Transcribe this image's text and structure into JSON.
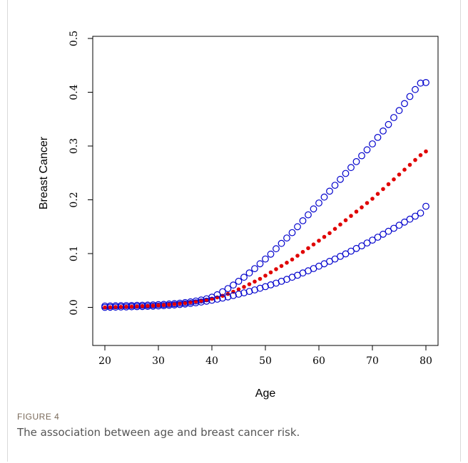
{
  "figure": {
    "label": "FIGURE 4",
    "caption": "The association between age and breast cancer risk."
  },
  "colors": {
    "estimate": "#e00000",
    "bounds": "#0000cc",
    "axis": "#000000"
  },
  "chart_data": {
    "type": "scatter",
    "title": "",
    "xlabel": "Age",
    "ylabel": "Breast Cancer",
    "xlim": [
      20,
      80
    ],
    "ylim": [
      -0.07,
      0.5
    ],
    "xticks": [
      20,
      30,
      40,
      50,
      60,
      70,
      80
    ],
    "yticks": [
      0.0,
      0.1,
      0.2,
      0.3,
      0.4,
      0.5
    ],
    "ytick_labels": [
      "0.0",
      "0.1",
      "0.2",
      "0.3",
      "0.4",
      "0.5"
    ],
    "grid": false,
    "x": [
      20,
      21,
      22,
      23,
      24,
      25,
      26,
      27,
      28,
      29,
      30,
      31,
      32,
      33,
      34,
      35,
      36,
      37,
      38,
      39,
      40,
      41,
      42,
      43,
      44,
      45,
      46,
      47,
      48,
      49,
      50,
      51,
      52,
      53,
      54,
      55,
      56,
      57,
      58,
      59,
      60,
      61,
      62,
      63,
      64,
      65,
      66,
      67,
      68,
      69,
      70,
      71,
      72,
      73,
      74,
      75,
      76,
      77,
      78,
      79,
      80
    ],
    "series": [
      {
        "marker": "open-circle",
        "values": [
          0.0025,
          0.0027,
          0.0029,
          0.0031,
          0.0033,
          0.0035,
          0.0037,
          0.004,
          0.0043,
          0.0047,
          0.0051,
          0.0056,
          0.0062,
          0.0069,
          0.0078,
          0.0089,
          0.0102,
          0.0118,
          0.0137,
          0.0159,
          0.019,
          0.0235,
          0.029,
          0.035,
          0.0415,
          0.0485,
          0.056,
          0.064,
          0.072,
          0.081,
          0.09,
          0.099,
          0.109,
          0.119,
          0.129,
          0.139,
          0.15,
          0.161,
          0.172,
          0.183,
          0.194,
          0.205,
          0.216,
          0.227,
          0.238,
          0.249,
          0.26,
          0.271,
          0.282,
          0.293,
          0.304,
          0.316,
          0.328,
          0.34,
          0.353,
          0.366,
          0.379,
          0.392,
          0.405,
          0.417,
          0.418
        ]
      },
      {
        "marker": "filled-circle",
        "values": [
          0.0,
          0.0003,
          0.0006,
          0.0009,
          0.0012,
          0.0015,
          0.0019,
          0.0023,
          0.0027,
          0.0032,
          0.0038,
          0.0044,
          0.0052,
          0.006,
          0.007,
          0.0081,
          0.0094,
          0.0108,
          0.0123,
          0.014,
          0.016,
          0.0185,
          0.0215,
          0.025,
          0.029,
          0.0335,
          0.038,
          0.043,
          0.048,
          0.053,
          0.059,
          0.065,
          0.071,
          0.077,
          0.083,
          0.089,
          0.096,
          0.103,
          0.11,
          0.117,
          0.124,
          0.131,
          0.138,
          0.146,
          0.154,
          0.162,
          0.17,
          0.178,
          0.186,
          0.194,
          0.202,
          0.211,
          0.22,
          0.229,
          0.238,
          0.247,
          0.256,
          0.265,
          0.274,
          0.283,
          0.29
        ]
      },
      {
        "marker": "open-circle",
        "values": [
          0.0,
          0.0002,
          0.0004,
          0.0006,
          0.0008,
          0.001,
          0.0013,
          0.0016,
          0.0019,
          0.0023,
          0.0027,
          0.0032,
          0.0038,
          0.0045,
          0.0053,
          0.0062,
          0.0073,
          0.0085,
          0.0099,
          0.0115,
          0.0132,
          0.0152,
          0.0172,
          0.0195,
          0.022,
          0.0245,
          0.027,
          0.0297,
          0.0325,
          0.0355,
          0.0385,
          0.0418,
          0.045,
          0.0485,
          0.052,
          0.056,
          0.0598,
          0.064,
          0.068,
          0.0722,
          0.0765,
          0.081,
          0.0855,
          0.09,
          0.0948,
          0.0995,
          0.1045,
          0.1095,
          0.1145,
          0.1197,
          0.125,
          0.1305,
          0.136,
          0.1415,
          0.147,
          0.1527,
          0.1585,
          0.164,
          0.1695,
          0.1753,
          0.188
        ]
      }
    ]
  }
}
